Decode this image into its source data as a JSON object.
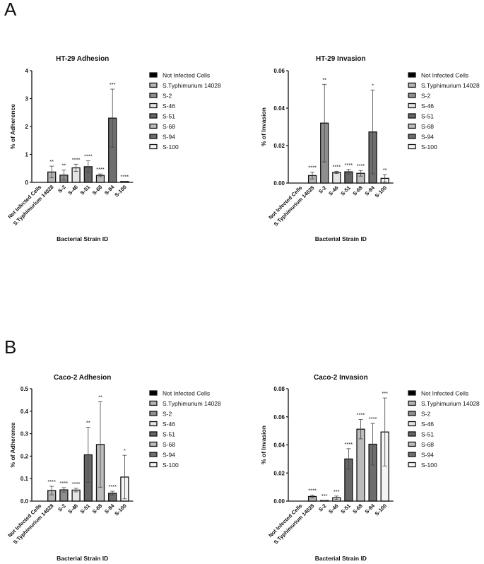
{
  "panels": [
    {
      "label": "A"
    },
    {
      "label": "B"
    }
  ],
  "bar_colors": [
    "#000000",
    "#b4b4b4",
    "#8e8e8e",
    "#e4e4e4",
    "#666666",
    "#bcbcbc",
    "#6e6e6e",
    "#f4f4f4"
  ],
  "chart_data": [
    {
      "type": "bar",
      "title": "HT-29 Adhesion",
      "xlabel": "Bacterial Strain ID",
      "ylabel": "% of Adherence",
      "categories": [
        "Not Infected Cells",
        "S.Typhimurium 14028",
        "S-2",
        "S-46",
        "S-51",
        "S-68",
        "S-94",
        "S-100"
      ],
      "values": [
        0,
        0.37,
        0.26,
        0.52,
        0.56,
        0.25,
        2.3,
        0.03
      ],
      "errors": [
        0,
        0.21,
        0.18,
        0.13,
        0.21,
        0.05,
        1.04,
        0.01
      ],
      "significance": [
        "",
        "**",
        "**",
        "****",
        "****",
        "****",
        "***",
        "****"
      ],
      "ylim": [
        0,
        4
      ],
      "yticks": [
        "0",
        "1",
        "2",
        "3",
        "4"
      ],
      "legend": "right",
      "grid": false
    },
    {
      "type": "bar",
      "title": "HT-29 Invasion",
      "xlabel": "Bacterial Strain ID",
      "ylabel": "% of Invasion",
      "categories": [
        "Not Infected Cells",
        "S.Typhimurium 14028",
        "S-2",
        "S-46",
        "S-51",
        "S-68",
        "S-94",
        "S-100"
      ],
      "values": [
        0,
        0.004,
        0.032,
        0.0057,
        0.006,
        0.0052,
        0.0273,
        0.0025
      ],
      "errors": [
        0,
        0.0018,
        0.0207,
        0.0006,
        0.0012,
        0.0015,
        0.0224,
        0.002
      ],
      "significance": [
        "",
        "****",
        "**",
        "****",
        "****",
        "****",
        "*",
        "**"
      ],
      "ylim": [
        0,
        0.06
      ],
      "yticks": [
        "0.00",
        "0.02",
        "0.04",
        "0.06"
      ],
      "legend": "right",
      "grid": false
    },
    {
      "type": "bar",
      "title": "Caco-2 Adhesion",
      "xlabel": "Bacterial Strain ID",
      "ylabel": "% of Adherence",
      "categories": [
        "Not Infected Cells",
        "S.Typhimurium 14028",
        "S-2",
        "S-46",
        "S-51",
        "S-68",
        "S-94",
        "S-100"
      ],
      "values": [
        0,
        0.047,
        0.05,
        0.049,
        0.206,
        0.252,
        0.035,
        0.107
      ],
      "errors": [
        0,
        0.019,
        0.01,
        0.008,
        0.123,
        0.19,
        0.009,
        0.097
      ],
      "significance": [
        "",
        "****",
        "****",
        "****",
        "**",
        "**",
        "****",
        "*"
      ],
      "ylim": [
        0,
        0.5
      ],
      "yticks": [
        "0.0",
        "0.1",
        "0.2",
        "0.3",
        "0.4",
        "0.5"
      ],
      "legend": "right",
      "grid": false
    },
    {
      "type": "bar",
      "title": "Caco-2 Invasion",
      "xlabel": "Bacterial Strain ID",
      "ylabel": "% of Invasion",
      "categories": [
        "Not Infected Cells",
        "S.Typhimurium 14028",
        "S-2",
        "S-46",
        "S-51",
        "S-68",
        "S-94",
        "S-100"
      ],
      "values": [
        0,
        0.0033,
        0.0004,
        0.0024,
        0.03,
        0.0512,
        0.0405,
        0.0492
      ],
      "errors": [
        0,
        0.001,
        0.0002,
        0.0012,
        0.0073,
        0.0069,
        0.0148,
        0.0242
      ],
      "significance": [
        "",
        "****",
        "***",
        "***",
        "****",
        "****",
        "****",
        "***"
      ],
      "ylim": [
        0,
        0.08
      ],
      "yticks": [
        "0.00",
        "0.02",
        "0.04",
        "0.06",
        "0.08"
      ],
      "legend": "right",
      "grid": false
    }
  ]
}
